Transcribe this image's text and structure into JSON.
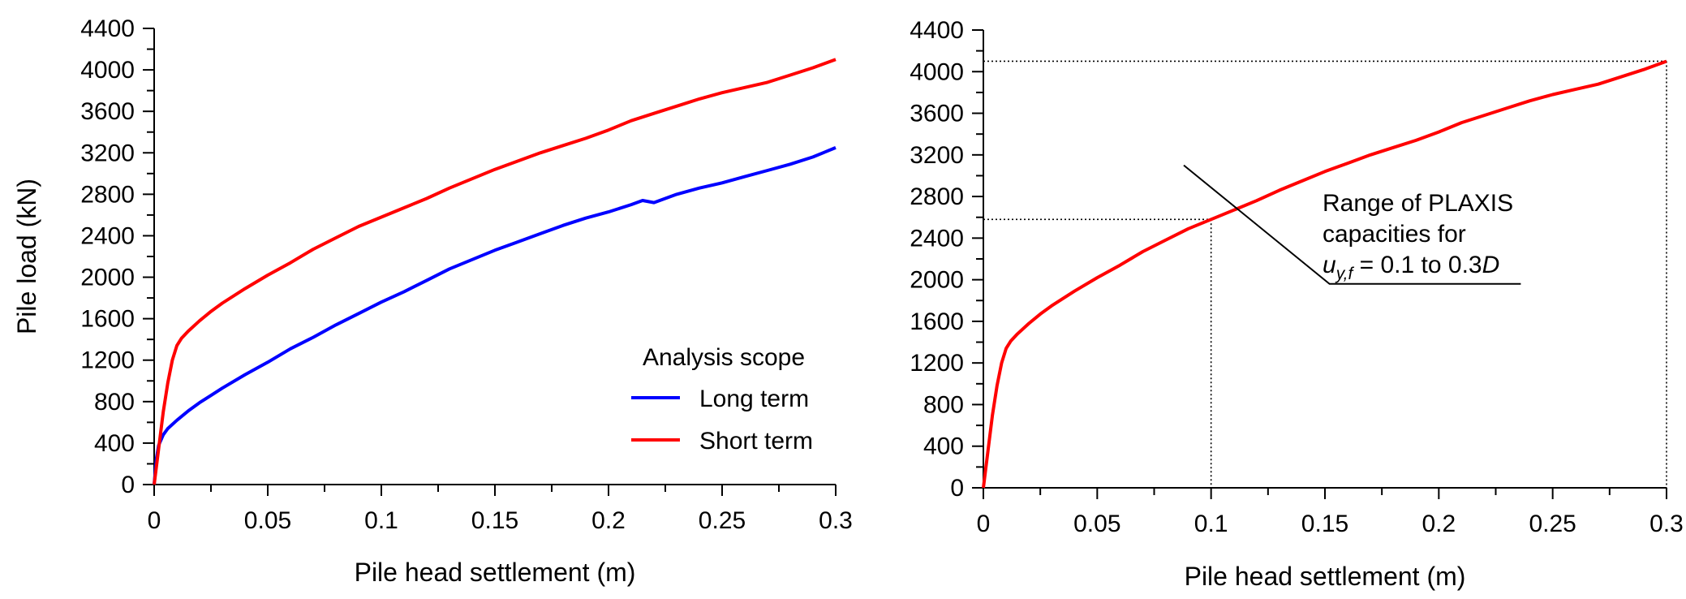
{
  "chart_data": [
    {
      "type": "line",
      "xlabel": "Pile head settlement (m)",
      "ylabel": "Pile load (kN)",
      "xlim": [
        0,
        0.3
      ],
      "ylim": [
        0,
        4400
      ],
      "xticks": [
        "0",
        "0.05",
        "0.1",
        "0.15",
        "0.2",
        "0.25",
        "0.3"
      ],
      "yticks": [
        "0",
        "400",
        "800",
        "1200",
        "1600",
        "2000",
        "2400",
        "2800",
        "3200",
        "3600",
        "4000",
        "4400"
      ],
      "grid": false,
      "legend": {
        "title": "Analysis scope",
        "placement": "bottom-right",
        "entries": [
          "Long term",
          "Short term"
        ]
      },
      "series": [
        {
          "name": "Long term",
          "color": "#0000ff",
          "x": [
            0,
            0.001,
            0.002,
            0.004,
            0.006,
            0.01,
            0.015,
            0.02,
            0.025,
            0.03,
            0.04,
            0.05,
            0.06,
            0.07,
            0.08,
            0.09,
            0.1,
            0.11,
            0.12,
            0.13,
            0.14,
            0.15,
            0.16,
            0.17,
            0.18,
            0.19,
            0.2,
            0.21,
            0.215,
            0.22,
            0.23,
            0.24,
            0.25,
            0.26,
            0.27,
            0.28,
            0.29,
            0.3
          ],
          "y": [
            0,
            250,
            380,
            480,
            540,
            620,
            710,
            790,
            860,
            930,
            1060,
            1180,
            1310,
            1420,
            1540,
            1650,
            1760,
            1860,
            1970,
            2080,
            2170,
            2260,
            2340,
            2420,
            2500,
            2570,
            2630,
            2700,
            2740,
            2720,
            2800,
            2860,
            2910,
            2970,
            3030,
            3090,
            3160,
            3250
          ]
        },
        {
          "name": "Short term",
          "color": "#ff0000",
          "x": [
            0,
            0.002,
            0.004,
            0.006,
            0.008,
            0.01,
            0.012,
            0.015,
            0.02,
            0.025,
            0.03,
            0.04,
            0.05,
            0.06,
            0.07,
            0.08,
            0.09,
            0.1,
            0.11,
            0.12,
            0.13,
            0.14,
            0.15,
            0.16,
            0.17,
            0.18,
            0.19,
            0.2,
            0.21,
            0.22,
            0.23,
            0.24,
            0.25,
            0.26,
            0.27,
            0.28,
            0.29,
            0.3
          ],
          "y": [
            0,
            350,
            700,
            980,
            1200,
            1340,
            1410,
            1480,
            1580,
            1670,
            1750,
            1890,
            2020,
            2140,
            2270,
            2380,
            2490,
            2580,
            2670,
            2760,
            2860,
            2950,
            3040,
            3120,
            3200,
            3270,
            3340,
            3420,
            3510,
            3580,
            3650,
            3720,
            3780,
            3830,
            3880,
            3950,
            4020,
            4100
          ]
        }
      ]
    },
    {
      "type": "line",
      "xlabel": "Pile head settlement (m)",
      "ylabel": "",
      "xlim": [
        0,
        0.3
      ],
      "ylim": [
        0,
        4400
      ],
      "xticks": [
        "0",
        "0.05",
        "0.1",
        "0.15",
        "0.2",
        "0.25",
        "0.3"
      ],
      "yticks": [
        "0",
        "400",
        "800",
        "1200",
        "1600",
        "2000",
        "2400",
        "2800",
        "3200",
        "3600",
        "4000",
        "4400"
      ],
      "grid": false,
      "series": [
        {
          "name": "",
          "color": "#ff0000",
          "x": [
            0,
            0.002,
            0.004,
            0.006,
            0.008,
            0.01,
            0.012,
            0.015,
            0.02,
            0.025,
            0.03,
            0.04,
            0.05,
            0.06,
            0.07,
            0.08,
            0.09,
            0.1,
            0.11,
            0.12,
            0.13,
            0.14,
            0.15,
            0.16,
            0.17,
            0.18,
            0.19,
            0.2,
            0.21,
            0.22,
            0.23,
            0.24,
            0.25,
            0.26,
            0.27,
            0.28,
            0.29,
            0.3
          ],
          "y": [
            0,
            350,
            700,
            980,
            1200,
            1340,
            1410,
            1480,
            1580,
            1670,
            1750,
            1890,
            2020,
            2140,
            2270,
            2380,
            2490,
            2580,
            2670,
            2760,
            2860,
            2950,
            3040,
            3120,
            3200,
            3270,
            3340,
            3420,
            3510,
            3580,
            3650,
            3720,
            3780,
            3830,
            3880,
            3950,
            4020,
            4100
          ]
        }
      ],
      "reference_lines": {
        "color": "#000000",
        "style": "dotted",
        "points": [
          {
            "x": 0.1,
            "y": 2580
          },
          {
            "x": 0.3,
            "y": 4100
          }
        ]
      },
      "annotation": {
        "lines": [
          "Range of PLAXIS",
          "capacities for"
        ],
        "formula": {
          "var": "u",
          "sub": "y,f",
          "mid": " = 0.1 to 0.3",
          "end": "D"
        },
        "leader": [
          {
            "x": 0.088,
            "y": 3100
          },
          {
            "x": 0.152,
            "y": 1960
          },
          {
            "x": 0.236,
            "y": 1960
          }
        ]
      }
    }
  ]
}
